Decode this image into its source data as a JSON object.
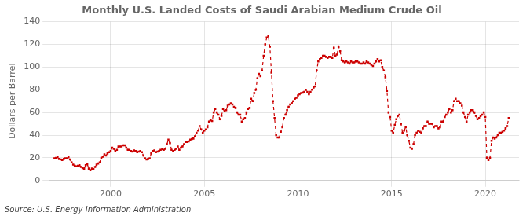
{
  "chart_data": {
    "type": "line",
    "title": "Monthly U.S. Landed Costs of Saudi Arabian Medium Crude Oil",
    "y_label": "Dollars per Barrel",
    "annotations": [
      "Source: U.S. Energy Information Administration"
    ],
    "xlim": [
      1996.7,
      2021.8
    ],
    "xticks": [
      2000,
      2005,
      2010,
      2015,
      2020
    ],
    "ylim": [
      0,
      140
    ],
    "yticks": [
      0,
      20,
      40,
      60,
      80,
      100,
      120,
      140
    ],
    "grid": true,
    "color": "#CC0000",
    "marker": "square",
    "line_style": "dashed",
    "x": [
      1997.0,
      1997.083,
      1997.167,
      1997.25,
      1997.333,
      1997.417,
      1997.5,
      1997.583,
      1997.667,
      1997.75,
      1997.833,
      1997.917,
      1998.0,
      1998.083,
      1998.167,
      1998.25,
      1998.333,
      1998.417,
      1998.5,
      1998.583,
      1998.667,
      1998.75,
      1998.833,
      1998.917,
      1999.0,
      1999.083,
      1999.167,
      1999.25,
      1999.333,
      1999.417,
      1999.5,
      1999.583,
      1999.667,
      1999.75,
      1999.833,
      1999.917,
      2000.0,
      2000.083,
      2000.167,
      2000.25,
      2000.333,
      2000.417,
      2000.5,
      2000.583,
      2000.667,
      2000.75,
      2000.833,
      2000.917,
      2001.0,
      2001.083,
      2001.167,
      2001.25,
      2001.333,
      2001.417,
      2001.5,
      2001.583,
      2001.667,
      2001.75,
      2001.833,
      2001.917,
      2002.0,
      2002.083,
      2002.167,
      2002.25,
      2002.333,
      2002.417,
      2002.5,
      2002.583,
      2002.667,
      2002.75,
      2002.833,
      2002.917,
      2003.0,
      2003.083,
      2003.167,
      2003.25,
      2003.333,
      2003.417,
      2003.5,
      2003.583,
      2003.667,
      2003.75,
      2003.833,
      2003.917,
      2004.0,
      2004.083,
      2004.167,
      2004.25,
      2004.333,
      2004.417,
      2004.5,
      2004.583,
      2004.667,
      2004.75,
      2004.833,
      2004.917,
      2005.0,
      2005.083,
      2005.167,
      2005.25,
      2005.333,
      2005.417,
      2005.5,
      2005.583,
      2005.667,
      2005.75,
      2005.833,
      2005.917,
      2006.0,
      2006.083,
      2006.167,
      2006.25,
      2006.333,
      2006.417,
      2006.5,
      2006.583,
      2006.667,
      2006.75,
      2006.833,
      2006.917,
      2007.0,
      2007.083,
      2007.167,
      2007.25,
      2007.333,
      2007.417,
      2007.5,
      2007.583,
      2007.667,
      2007.75,
      2007.833,
      2007.917,
      2008.0,
      2008.083,
      2008.167,
      2008.25,
      2008.333,
      2008.417,
      2008.5,
      2008.583,
      2008.667,
      2008.75,
      2008.833,
      2008.917,
      2009.0,
      2009.083,
      2009.167,
      2009.25,
      2009.333,
      2009.417,
      2009.5,
      2009.583,
      2009.667,
      2009.75,
      2009.833,
      2009.917,
      2010.0,
      2010.083,
      2010.167,
      2010.25,
      2010.333,
      2010.417,
      2010.5,
      2010.583,
      2010.667,
      2010.75,
      2010.833,
      2010.917,
      2011.0,
      2011.083,
      2011.167,
      2011.25,
      2011.333,
      2011.417,
      2011.5,
      2011.583,
      2011.667,
      2011.75,
      2011.833,
      2011.917,
      2012.0,
      2012.083,
      2012.167,
      2012.25,
      2012.333,
      2012.417,
      2012.5,
      2012.583,
      2012.667,
      2012.75,
      2012.833,
      2012.917,
      2013.0,
      2013.083,
      2013.167,
      2013.25,
      2013.333,
      2013.417,
      2013.5,
      2013.583,
      2013.667,
      2013.75,
      2013.833,
      2013.917,
      2014.0,
      2014.083,
      2014.167,
      2014.25,
      2014.333,
      2014.417,
      2014.5,
      2014.583,
      2014.667,
      2014.75,
      2014.833,
      2014.917,
      2015.0,
      2015.083,
      2015.167,
      2015.25,
      2015.333,
      2015.417,
      2015.5,
      2015.583,
      2015.667,
      2015.75,
      2015.833,
      2015.917,
      2016.0,
      2016.083,
      2016.167,
      2016.25,
      2016.333,
      2016.417,
      2016.5,
      2016.583,
      2016.667,
      2016.75,
      2016.833,
      2016.917,
      2017.0,
      2017.083,
      2017.167,
      2017.25,
      2017.333,
      2017.417,
      2017.5,
      2017.583,
      2017.667,
      2017.75,
      2017.833,
      2017.917,
      2018.0,
      2018.083,
      2018.167,
      2018.25,
      2018.333,
      2018.417,
      2018.5,
      2018.583,
      2018.667,
      2018.75,
      2018.833,
      2018.917,
      2019.0,
      2019.083,
      2019.167,
      2019.25,
      2019.333,
      2019.417,
      2019.5,
      2019.583,
      2019.667,
      2019.75,
      2019.833,
      2019.917,
      2020.0,
      2020.083,
      2020.167,
      2020.25,
      2020.333,
      2020.417,
      2020.5,
      2020.583,
      2020.667,
      2020.75,
      2020.833,
      2020.917,
      2021.0,
      2021.083,
      2021.167,
      2021.25
    ],
    "values": [
      19.5,
      20.0,
      20.5,
      19.0,
      18.5,
      18.0,
      19.0,
      19.5,
      19.5,
      20.5,
      18.5,
      16.0,
      14.0,
      13.0,
      12.5,
      13.0,
      13.5,
      12.0,
      11.0,
      10.5,
      13.5,
      14.5,
      10.5,
      9.0,
      10.5,
      10.0,
      12.0,
      14.0,
      15.0,
      16.0,
      20.0,
      21.0,
      23.0,
      22.0,
      24.0,
      25.0,
      26.0,
      29.0,
      28.0,
      26.0,
      27.0,
      30.0,
      30.0,
      30.0,
      31.0,
      31.0,
      29.0,
      27.0,
      27.0,
      26.0,
      25.5,
      26.5,
      26.0,
      25.0,
      25.5,
      26.0,
      25.0,
      22.0,
      19.5,
      18.5,
      19.0,
      19.5,
      24.0,
      26.0,
      26.5,
      25.0,
      25.5,
      26.0,
      27.0,
      27.5,
      27.0,
      28.0,
      32.0,
      36.0,
      33.0,
      27.0,
      26.0,
      27.0,
      28.0,
      30.0,
      27.0,
      29.0,
      30.0,
      32.0,
      34.0,
      34.0,
      34.5,
      36.0,
      36.5,
      37.0,
      39.0,
      42.0,
      44.0,
      48.0,
      45.0,
      42.0,
      44.0,
      45.0,
      47.0,
      52.0,
      53.0,
      52.5,
      60.0,
      63.0,
      60.0,
      58.0,
      54.0,
      57.0,
      63.0,
      61.0,
      62.0,
      66.0,
      67.0,
      68.0,
      67.0,
      65.0,
      64.0,
      60.0,
      58.0,
      58.0,
      52.0,
      54.0,
      55.0,
      60.0,
      63.0,
      64.0,
      72.0,
      70.0,
      77.0,
      80.0,
      90.0,
      94.0,
      92.0,
      97.0,
      110.0,
      120.0,
      126.0,
      127.0,
      118.0,
      95.0,
      70.0,
      55.0,
      40.0,
      38.0,
      38.0,
      43.0,
      47.0,
      55.0,
      58.0,
      62.0,
      65.0,
      67.0,
      68.0,
      70.0,
      72.0,
      73.0,
      75.0,
      76.0,
      77.0,
      77.5,
      78.0,
      80.0,
      78.0,
      76.0,
      78.0,
      80.0,
      82.0,
      83.0,
      97.0,
      105.0,
      107.0,
      108.0,
      110.0,
      110.0,
      109.0,
      108.0,
      109.0,
      109.0,
      108.0,
      117.0,
      110.0,
      111.0,
      118.0,
      114.0,
      106.0,
      105.0,
      104.0,
      105.0,
      104.0,
      103.0,
      105.0,
      104.0,
      104.0,
      105.0,
      105.0,
      104.0,
      103.0,
      103.0,
      104.0,
      103.0,
      105.0,
      104.0,
      103.0,
      102.0,
      101.0,
      103.0,
      105.0,
      107.0,
      105.0,
      106.0,
      100.0,
      97.0,
      91.0,
      79.0,
      60.0,
      56.0,
      44.0,
      42.0,
      49.0,
      54.0,
      57.0,
      58.0,
      50.0,
      42.0,
      44.0,
      47.0,
      40.0,
      35.0,
      29.0,
      28.0,
      32.0,
      40.0,
      42.0,
      44.0,
      43.0,
      42.0,
      46.0,
      48.0,
      48.0,
      52.0,
      50.0,
      50.0,
      50.0,
      47.0,
      48.0,
      48.0,
      46.0,
      47.0,
      52.0,
      52.0,
      56.0,
      58.0,
      60.0,
      63.0,
      60.0,
      62.0,
      70.0,
      72.0,
      70.0,
      70.0,
      68.0,
      66.0,
      60.0,
      56.0,
      52.0,
      58.0,
      60.0,
      62.0,
      62.0,
      60.0,
      57.0,
      54.0,
      55.0,
      57.0,
      58.0,
      60.0,
      56.0,
      20.0,
      18.0,
      20.0,
      35.0,
      38.0,
      37.0,
      38.0,
      40.0,
      42.0,
      42.0,
      43.0,
      44.0,
      46.0,
      48.0,
      55.0
    ]
  }
}
